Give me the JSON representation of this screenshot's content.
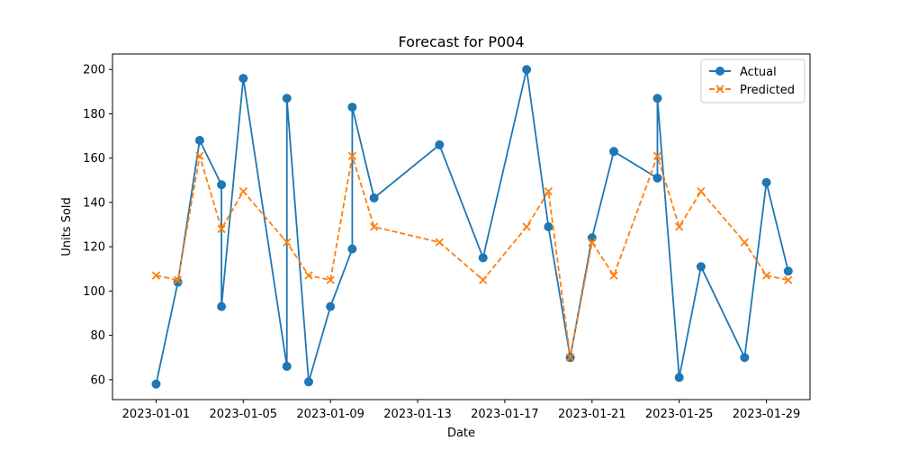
{
  "chart_data": {
    "type": "line",
    "title": "Forecast for P004",
    "xlabel": "Date",
    "ylabel": "Units Sold",
    "x_tick_labels": [
      "2023-01-01",
      "2023-01-05",
      "2023-01-09",
      "2023-01-13",
      "2023-01-17",
      "2023-01-21",
      "2023-01-25",
      "2023-01-29"
    ],
    "y_ticks": [
      60,
      80,
      100,
      120,
      140,
      160,
      180,
      200
    ],
    "xlim": [
      "2022-12-30",
      "2023-01-31"
    ],
    "ylim": [
      51,
      207
    ],
    "legend_position": "top-right",
    "series": [
      {
        "name": "Actual",
        "color": "#1f77b4",
        "marker": "circle",
        "linestyle": "solid",
        "points": [
          {
            "x": "2023-01-01",
            "y": 58
          },
          {
            "x": "2023-01-02",
            "y": 104
          },
          {
            "x": "2023-01-03",
            "y": 168
          },
          {
            "x": "2023-01-04",
            "y": 148
          },
          {
            "x": "2023-01-04",
            "y": 93
          },
          {
            "x": "2023-01-05",
            "y": 196
          },
          {
            "x": "2023-01-07",
            "y": 66
          },
          {
            "x": "2023-01-07",
            "y": 187
          },
          {
            "x": "2023-01-08",
            "y": 59
          },
          {
            "x": "2023-01-09",
            "y": 93
          },
          {
            "x": "2023-01-10",
            "y": 119
          },
          {
            "x": "2023-01-10",
            "y": 183
          },
          {
            "x": "2023-01-11",
            "y": 142
          },
          {
            "x": "2023-01-14",
            "y": 166
          },
          {
            "x": "2023-01-16",
            "y": 115
          },
          {
            "x": "2023-01-18",
            "y": 200
          },
          {
            "x": "2023-01-19",
            "y": 129
          },
          {
            "x": "2023-01-20",
            "y": 70
          },
          {
            "x": "2023-01-21",
            "y": 124
          },
          {
            "x": "2023-01-22",
            "y": 163
          },
          {
            "x": "2023-01-24",
            "y": 151
          },
          {
            "x": "2023-01-24",
            "y": 187
          },
          {
            "x": "2023-01-25",
            "y": 61
          },
          {
            "x": "2023-01-26",
            "y": 111
          },
          {
            "x": "2023-01-28",
            "y": 70
          },
          {
            "x": "2023-01-29",
            "y": 149
          },
          {
            "x": "2023-01-30",
            "y": 109
          }
        ]
      },
      {
        "name": "Predicted",
        "color": "#ff7f0e",
        "marker": "x",
        "linestyle": "dashed",
        "points": [
          {
            "x": "2023-01-01",
            "y": 107
          },
          {
            "x": "2023-01-02",
            "y": 105
          },
          {
            "x": "2023-01-03",
            "y": 161
          },
          {
            "x": "2023-01-04",
            "y": 128
          },
          {
            "x": "2023-01-05",
            "y": 145
          },
          {
            "x": "2023-01-07",
            "y": 122
          },
          {
            "x": "2023-01-08",
            "y": 107
          },
          {
            "x": "2023-01-09",
            "y": 105
          },
          {
            "x": "2023-01-10",
            "y": 161
          },
          {
            "x": "2023-01-11",
            "y": 129
          },
          {
            "x": "2023-01-14",
            "y": 122
          },
          {
            "x": "2023-01-16",
            "y": 105
          },
          {
            "x": "2023-01-18",
            "y": 129
          },
          {
            "x": "2023-01-19",
            "y": 145
          },
          {
            "x": "2023-01-20",
            "y": 70
          },
          {
            "x": "2023-01-21",
            "y": 122
          },
          {
            "x": "2023-01-22",
            "y": 107
          },
          {
            "x": "2023-01-24",
            "y": 161
          },
          {
            "x": "2023-01-25",
            "y": 129
          },
          {
            "x": "2023-01-26",
            "y": 145
          },
          {
            "x": "2023-01-28",
            "y": 122
          },
          {
            "x": "2023-01-29",
            "y": 107
          },
          {
            "x": "2023-01-30",
            "y": 105
          }
        ]
      }
    ]
  }
}
